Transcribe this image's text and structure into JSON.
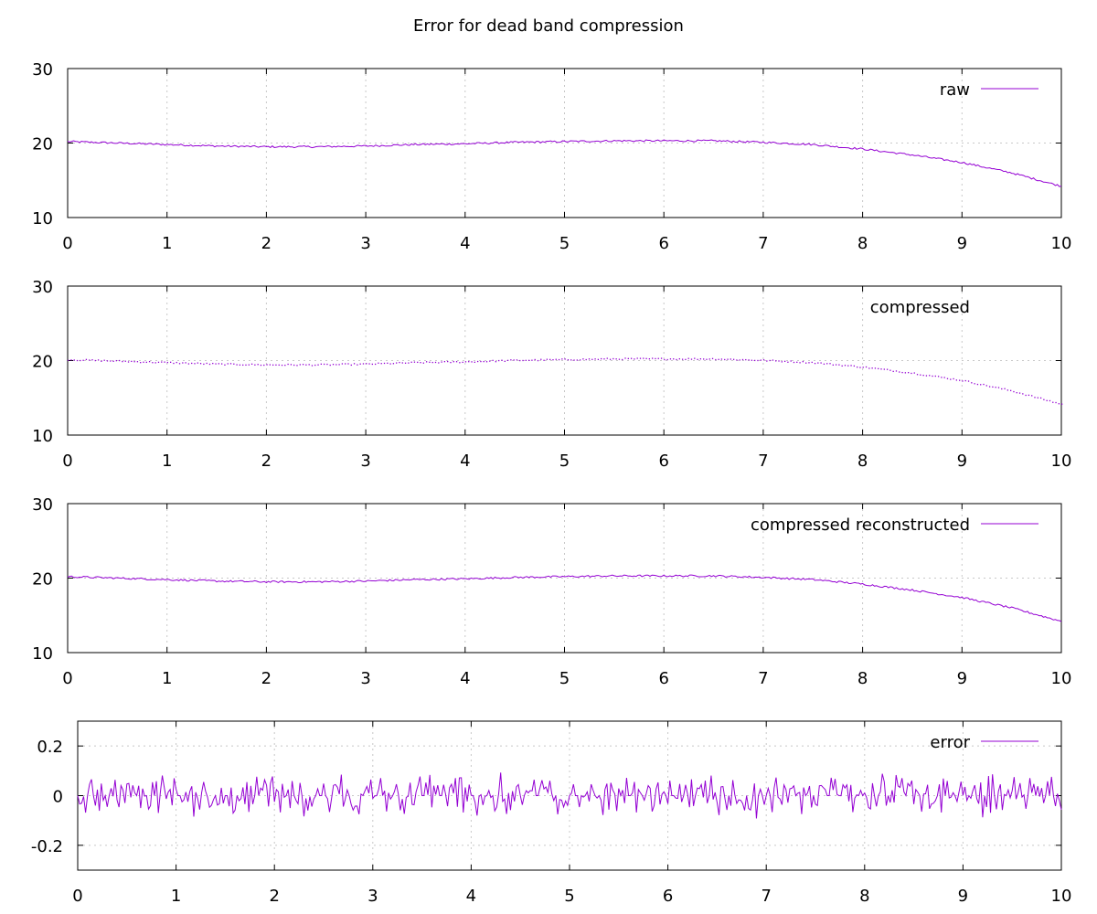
{
  "title": "Error for dead band compression",
  "colors": {
    "series": "#9400d3",
    "grid": "#c8c8c8",
    "axis": "#000000"
  },
  "chart_data": [
    {
      "type": "line",
      "title": "Error for dead band compression",
      "series": [
        {
          "name": "raw",
          "style": "line",
          "x": [
            0,
            0.5,
            1,
            1.5,
            2,
            2.5,
            3,
            3.5,
            4,
            4.5,
            5,
            5.5,
            6,
            6.5,
            7,
            7.5,
            8,
            8.5,
            9,
            9.5,
            10
          ],
          "y": [
            20.2,
            20.0,
            19.8,
            19.6,
            19.5,
            19.5,
            19.6,
            19.8,
            19.9,
            20.1,
            20.2,
            20.3,
            20.3,
            20.3,
            20.1,
            19.8,
            19.2,
            18.4,
            17.4,
            16.0,
            14.2
          ]
        }
      ],
      "xlim": [
        0,
        10
      ],
      "ylim": [
        10,
        30
      ],
      "xticks": [
        "0",
        "1",
        "2",
        "3",
        "4",
        "5",
        "6",
        "7",
        "8",
        "9",
        "10"
      ],
      "yticks": [
        "10",
        "20",
        "30"
      ],
      "grid": true,
      "legend_position": "top-right"
    },
    {
      "type": "scatter",
      "series": [
        {
          "name": "compressed",
          "style": "points",
          "x": [
            0,
            0.5,
            1,
            1.5,
            2,
            2.5,
            3,
            3.5,
            4,
            4.5,
            5,
            5.5,
            6,
            6.5,
            7,
            7.5,
            8,
            8.5,
            9,
            9.5,
            10
          ],
          "y": [
            20.2,
            20.0,
            19.8,
            19.6,
            19.5,
            19.5,
            19.6,
            19.8,
            19.9,
            20.1,
            20.2,
            20.3,
            20.3,
            20.3,
            20.1,
            19.8,
            19.2,
            18.4,
            17.4,
            16.0,
            14.2
          ]
        }
      ],
      "xlim": [
        0,
        10
      ],
      "ylim": [
        10,
        30
      ],
      "xticks": [
        "0",
        "1",
        "2",
        "3",
        "4",
        "5",
        "6",
        "7",
        "8",
        "9",
        "10"
      ],
      "yticks": [
        "10",
        "20",
        "30"
      ],
      "grid": true,
      "legend_position": "top-right"
    },
    {
      "type": "line",
      "series": [
        {
          "name": "compressed reconstructed",
          "style": "line",
          "x": [
            0,
            0.5,
            1,
            1.5,
            2,
            2.5,
            3,
            3.5,
            4,
            4.5,
            5,
            5.5,
            6,
            6.5,
            7,
            7.5,
            8,
            8.5,
            9,
            9.5,
            10
          ],
          "y": [
            20.2,
            20.0,
            19.8,
            19.6,
            19.5,
            19.5,
            19.6,
            19.8,
            19.9,
            20.1,
            20.2,
            20.3,
            20.3,
            20.3,
            20.1,
            19.8,
            19.2,
            18.4,
            17.4,
            16.0,
            14.2
          ]
        }
      ],
      "xlim": [
        0,
        10
      ],
      "ylim": [
        10,
        30
      ],
      "xticks": [
        "0",
        "1",
        "2",
        "3",
        "4",
        "5",
        "6",
        "7",
        "8",
        "9",
        "10"
      ],
      "yticks": [
        "10",
        "20",
        "30"
      ],
      "grid": true,
      "legend_position": "top-right"
    },
    {
      "type": "line",
      "series": [
        {
          "name": "error",
          "style": "line",
          "noise_amplitude": 0.1,
          "x": [
            0,
            0.5,
            1,
            1.5,
            2,
            2.5,
            3,
            3.5,
            4,
            4.5,
            5,
            5.5,
            6,
            6.5,
            7,
            7.5,
            8,
            8.5,
            9,
            9.5,
            10
          ],
          "y": [
            0,
            0,
            0,
            0,
            0,
            0,
            0,
            0,
            0,
            0,
            0,
            0,
            0,
            0,
            0,
            0,
            0,
            0,
            0,
            0,
            0
          ]
        }
      ],
      "xlim": [
        0,
        10
      ],
      "ylim": [
        -0.3,
        0.3
      ],
      "xticks": [
        "0",
        "1",
        "2",
        "3",
        "4",
        "5",
        "6",
        "7",
        "8",
        "9",
        "10"
      ],
      "yticks": [
        "-0.2",
        "0",
        "0.2"
      ],
      "grid": true,
      "legend_position": "top-right"
    }
  ]
}
